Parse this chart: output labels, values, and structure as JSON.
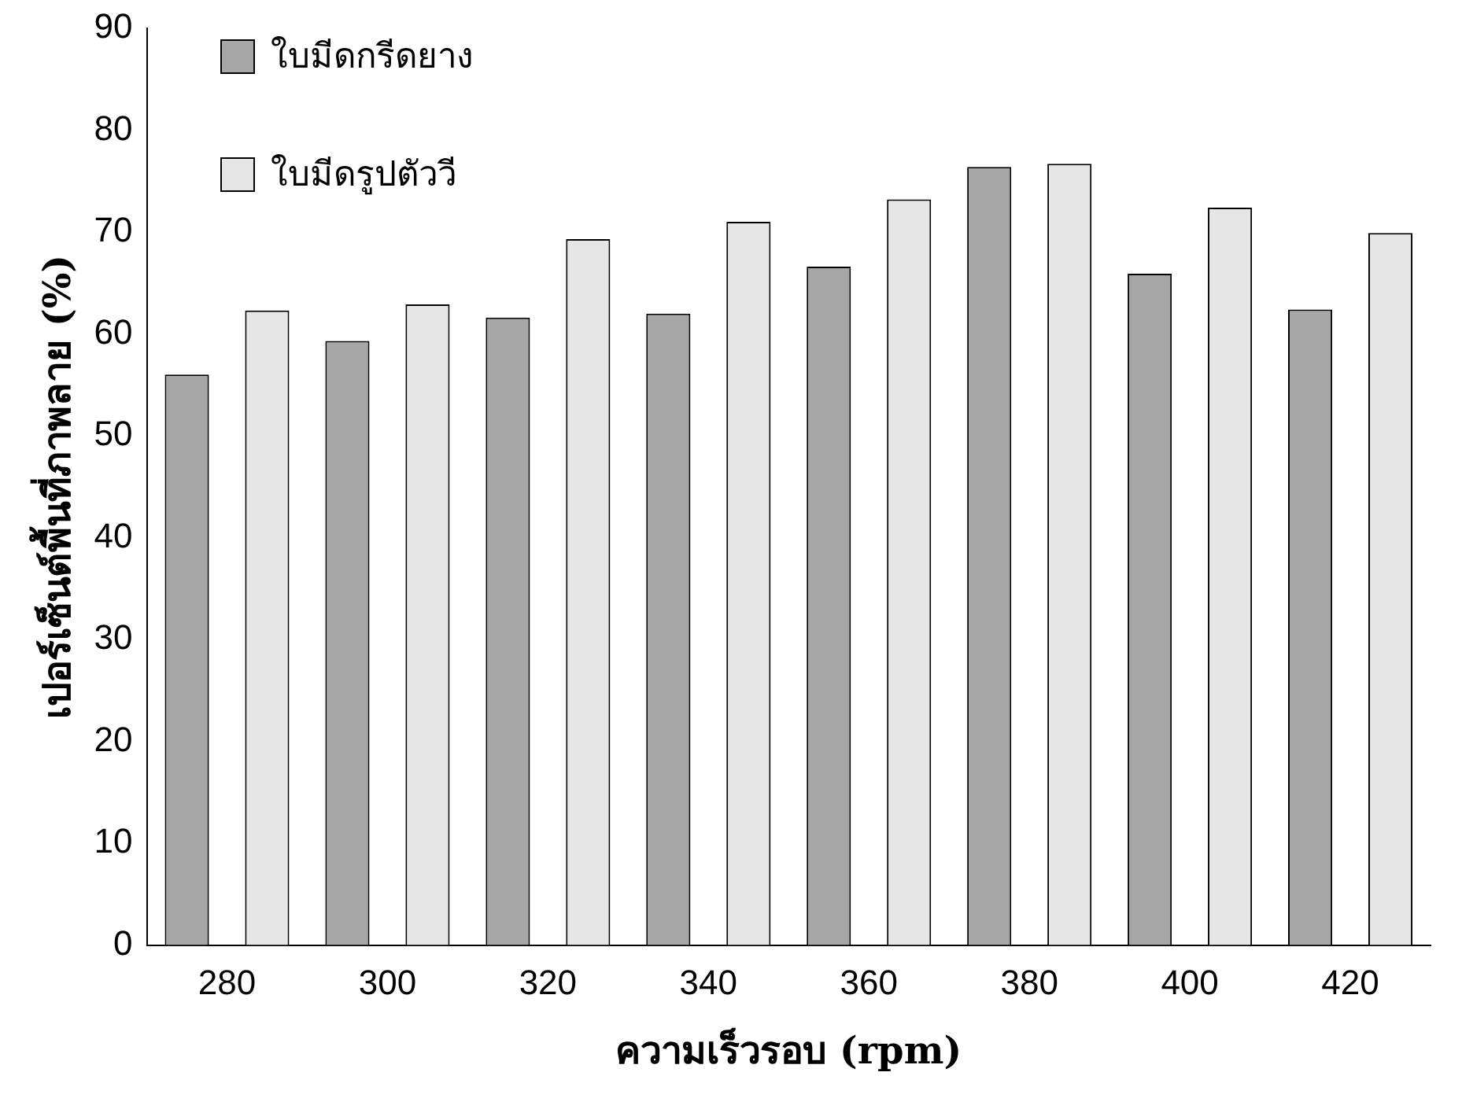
{
  "chart_data": {
    "type": "bar",
    "xlabel": "ความเร็วรอบ (rpm)",
    "ylabel": "เปอร์เซ็นต์พื้นที่ภาพลาย (%)",
    "categories": [
      "280",
      "300",
      "320",
      "340",
      "360",
      "380",
      "400",
      "420"
    ],
    "series": [
      {
        "name": "ใบมีดกรีดยาง",
        "color": "#a6a6a6",
        "values": [
          56.0,
          59.3,
          61.6,
          62.0,
          66.6,
          76.4,
          65.9,
          62.4
        ]
      },
      {
        "name": "ใบมีดรูปตัววี",
        "color": "#e6e6e6",
        "values": [
          62.3,
          62.9,
          69.3,
          71.0,
          73.2,
          76.7,
          72.4,
          69.9
        ]
      }
    ],
    "ylim": [
      0,
      90
    ],
    "yticks": [
      0,
      10,
      20,
      30,
      40,
      50,
      60,
      70,
      80,
      90
    ],
    "grid": false,
    "legend": "top left"
  }
}
